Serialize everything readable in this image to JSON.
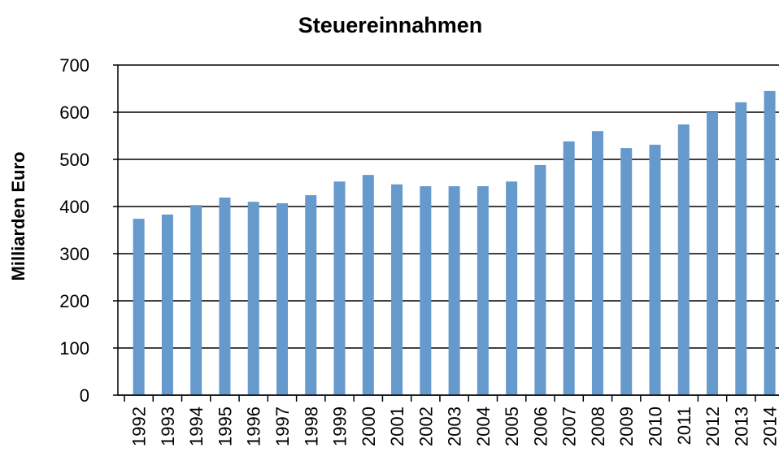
{
  "chart_data": {
    "type": "bar",
    "title": "Steuereinnahmen",
    "y_label": "Milliarden Euro",
    "categories": [
      "1992",
      "1993",
      "1994",
      "1995",
      "1996",
      "1997",
      "1998",
      "1999",
      "2000",
      "2001",
      "2002",
      "2003",
      "2004",
      "2005",
      "2006",
      "2007",
      "2008",
      "2009",
      "2010",
      "2011",
      "2012",
      "2013",
      "2014"
    ],
    "values": [
      374,
      383,
      403,
      419,
      410,
      407,
      424,
      453,
      467,
      447,
      443,
      443,
      443,
      453,
      488,
      538,
      560,
      524,
      531,
      574,
      600,
      621,
      645
    ],
    "color": "#6699cc",
    "ylim": [
      0,
      700
    ],
    "yticks": [
      0,
      100,
      200,
      300,
      400,
      500,
      600,
      700
    ],
    "grid": true
  }
}
